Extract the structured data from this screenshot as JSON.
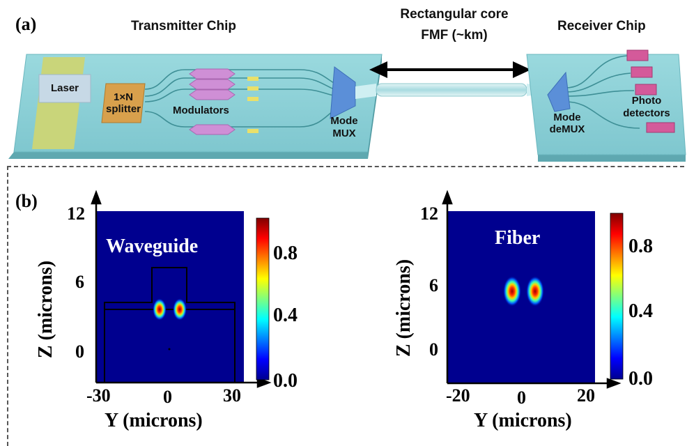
{
  "panel_a": {
    "label": "(a)",
    "transmitter_title": "Transmitter Chip",
    "receiver_title": "Receiver Chip",
    "link_title_line1": "Rectangular core",
    "link_title_line2": "FMF (~km)",
    "laser": "Laser",
    "splitter_line1": "1×N",
    "splitter_line2": "splitter",
    "modulators": "Modulators",
    "mux_line1": "Mode",
    "mux_line2": "MUX",
    "demux_line1": "Mode",
    "demux_line2": "deMUX",
    "pd_line1": "Photo",
    "pd_line2": "detectors"
  },
  "panel_b": {
    "label": "(b)",
    "plots": [
      {
        "title": "Waveguide",
        "ylabel": "Z (microns)",
        "xlabel": "Y (microns)",
        "yticks": [
          "12",
          "6",
          "0"
        ],
        "xticks": [
          "-30",
          "0",
          "30"
        ],
        "colorbar_ticks": [
          "0.8",
          "0.4",
          "0.0"
        ]
      },
      {
        "title": "Fiber",
        "ylabel": "Z (microns)",
        "xlabel": "Y (microns)",
        "yticks": [
          "12",
          "6",
          "0"
        ],
        "xticks": [
          "-20",
          "0",
          "20"
        ],
        "colorbar_ticks": [
          "0.8",
          "0.4",
          "0.0"
        ]
      }
    ]
  },
  "colors": {
    "chip": "#8fd3da",
    "plot_background": "#00008f",
    "laser": "#c8d8e8",
    "splitter": "#d9a050",
    "modulator": "#cf8fd6",
    "mux": "#5b8fd8",
    "photodetector": "#d45a9a"
  }
}
